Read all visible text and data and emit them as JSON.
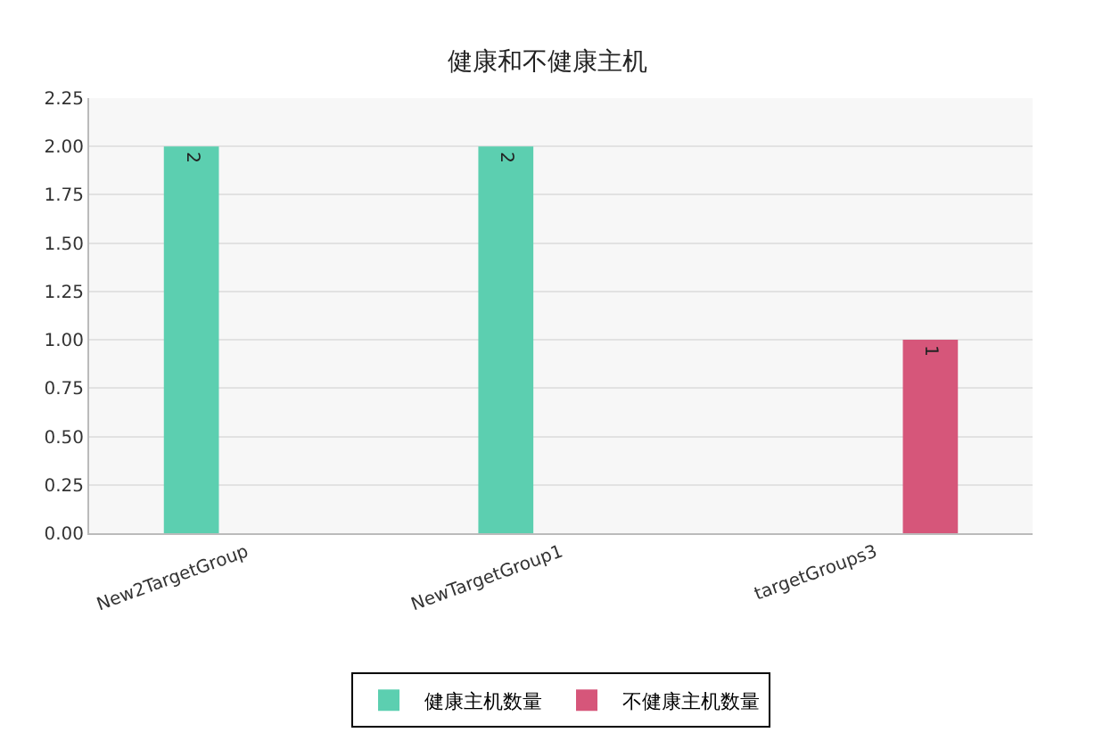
{
  "chart_data": {
    "type": "bar",
    "title": "健康和不健康主机",
    "categories": [
      "New2TargetGroup",
      "NewTargetGroup1",
      "targetGroups3"
    ],
    "series": [
      {
        "name": "健康主机数量",
        "color": "#5ccfb0",
        "values": [
          2,
          2,
          0
        ],
        "value_labels": [
          "2",
          "2",
          null
        ]
      },
      {
        "name": "不健康主机数量",
        "color": "#d6567a",
        "values": [
          0,
          0,
          1
        ],
        "value_labels": [
          null,
          null,
          "1"
        ]
      }
    ],
    "ylim": [
      0,
      2.25
    ],
    "yticks": [
      {
        "value": 0,
        "label": "0.00"
      },
      0.25,
      {
        "value": 0.5,
        "label": "0.50"
      },
      0.75,
      {
        "value": 1,
        "label": "1.00"
      },
      1.25,
      {
        "value": 1.5,
        "label": "1.50"
      },
      1.75,
      {
        "value": 2,
        "label": "2.00"
      },
      2.25
    ],
    "grid": "y",
    "legend": "bottom"
  }
}
